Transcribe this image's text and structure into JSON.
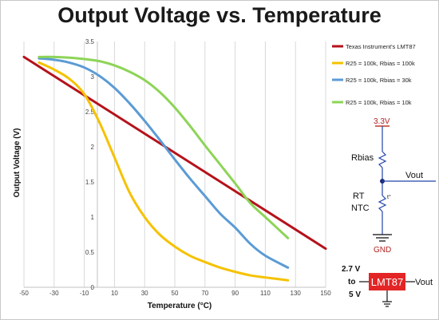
{
  "chart_data": {
    "type": "line",
    "title": "Output Voltage vs. Temperature",
    "xlabel": "Temperature (°C)",
    "ylabel": "Output Voltage (V)",
    "xlim": [
      -50,
      150
    ],
    "ylim": [
      0,
      3.5
    ],
    "x_ticks": [
      "-50",
      "-30",
      "-10",
      "10",
      "30",
      "50",
      "70",
      "90",
      "110",
      "130",
      "150"
    ],
    "y_ticks": [
      "0",
      "0.5",
      "1",
      "1.5",
      "2",
      "2.5",
      "3",
      "3.5"
    ],
    "grid": "vertical",
    "legend_position": "right",
    "series": [
      {
        "name": "Texas Instrument's LMT87",
        "color": "#b5121b",
        "x": [
          -50,
          150
        ],
        "y": [
          3.28,
          0.55
        ]
      },
      {
        "name": "R25 = 100k, Rbias = 100k",
        "color": "#f5c200",
        "x": [
          -40,
          -30,
          -20,
          -10,
          0,
          10,
          20,
          30,
          40,
          50,
          60,
          70,
          80,
          90,
          100,
          110,
          125
        ],
        "y": [
          3.2,
          3.1,
          2.97,
          2.75,
          2.35,
          1.85,
          1.35,
          1.0,
          0.75,
          0.58,
          0.45,
          0.36,
          0.28,
          0.22,
          0.17,
          0.14,
          0.1
        ]
      },
      {
        "name": "R25 = 100k, Rbias = 30k",
        "color": "#5b9bd5",
        "x": [
          -40,
          -30,
          -20,
          -10,
          0,
          10,
          20,
          30,
          40,
          50,
          60,
          70,
          80,
          90,
          100,
          110,
          125
        ],
        "y": [
          3.26,
          3.24,
          3.2,
          3.13,
          3.01,
          2.84,
          2.62,
          2.37,
          2.1,
          1.82,
          1.55,
          1.3,
          1.05,
          0.85,
          0.62,
          0.45,
          0.28
        ]
      },
      {
        "name": "R25 = 100k, Rbias = 10k",
        "color": "#8dd457",
        "x": [
          -40,
          -30,
          -20,
          -10,
          0,
          10,
          20,
          30,
          40,
          50,
          60,
          70,
          80,
          90,
          100,
          110,
          125
        ],
        "y": [
          3.28,
          3.28,
          3.27,
          3.25,
          3.22,
          3.16,
          3.07,
          2.95,
          2.78,
          2.56,
          2.3,
          2.02,
          1.75,
          1.48,
          1.2,
          1.0,
          0.7
        ]
      }
    ]
  },
  "circuit": {
    "supply": "3.3V",
    "rbias": "Rbias",
    "rt": "RT",
    "ntc": "NTC",
    "vout": "Vout",
    "gnd": "GND",
    "tc": "t°"
  },
  "block": {
    "vin_top": "2.7 V",
    "vin_to": "to",
    "vin_bottom": "5 V",
    "chip": "LMT87",
    "vout": "Vout"
  }
}
